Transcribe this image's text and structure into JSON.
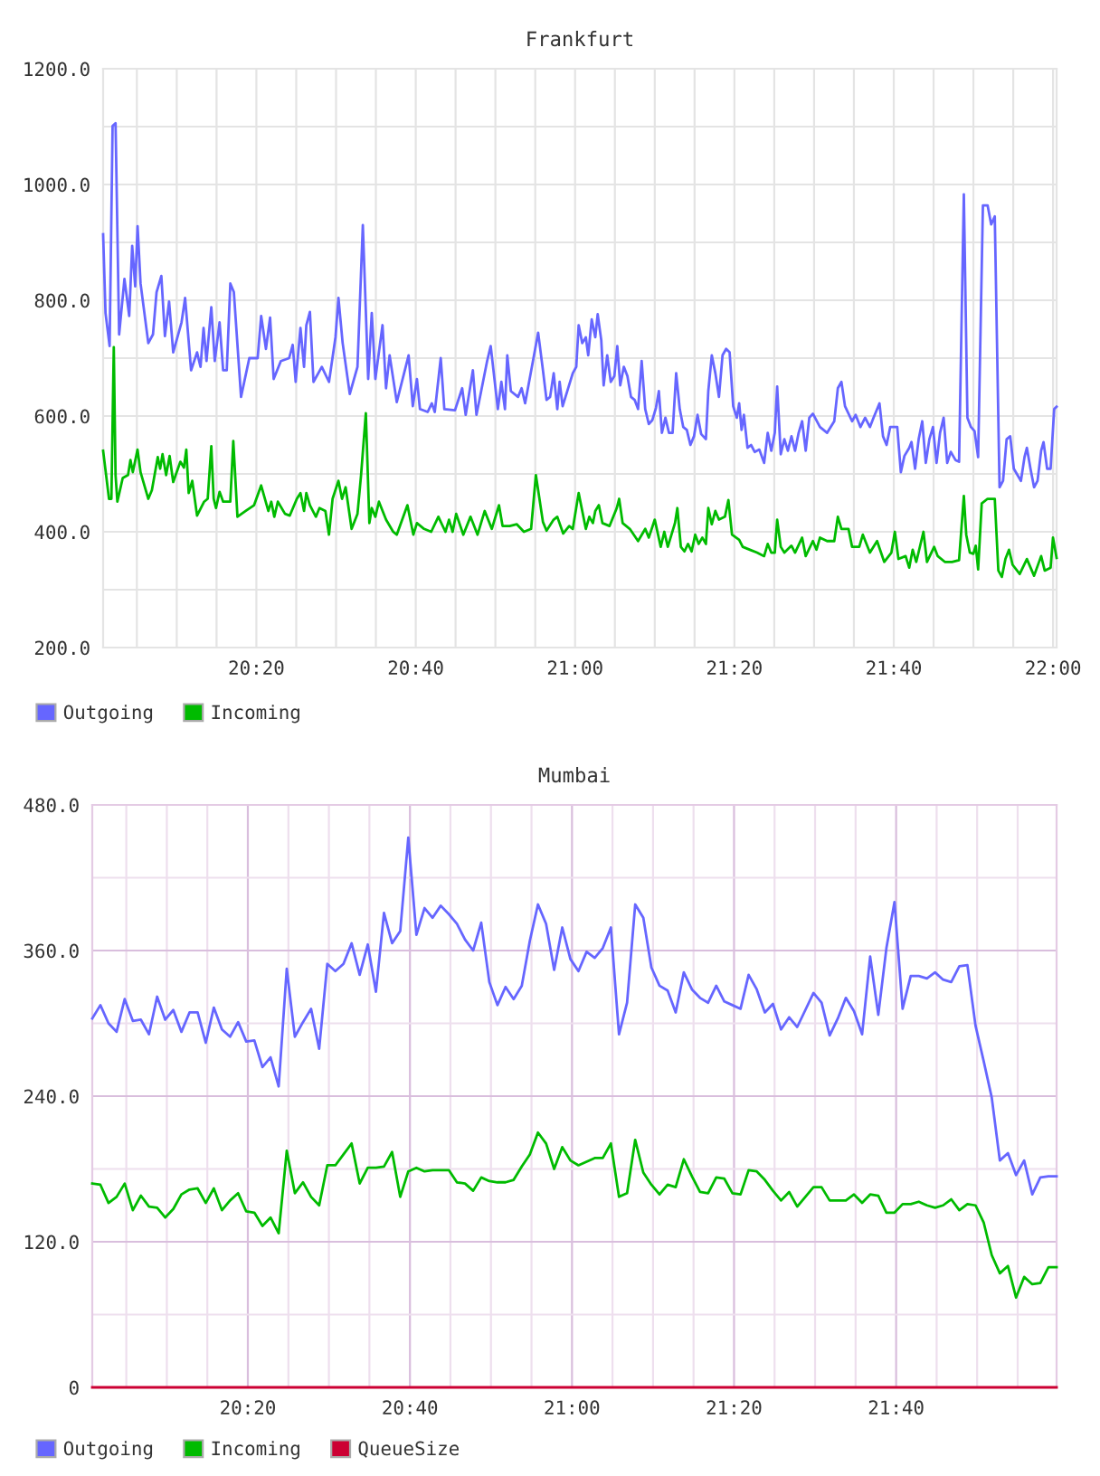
{
  "chart_data": [
    {
      "type": "line",
      "title": "Frankfurt",
      "xlim": [
        20.0127,
        22.0073
      ],
      "xticks": [
        {
          "value": 20.0833,
          "label": null
        },
        {
          "value": 20.1667,
          "label": null
        },
        {
          "value": 20.25,
          "label": null
        },
        {
          "value": 20.3333,
          "label": "20:20"
        },
        {
          "value": 20.4167,
          "label": null
        },
        {
          "value": 20.5,
          "label": null
        },
        {
          "value": 20.5833,
          "label": null
        },
        {
          "value": 20.6667,
          "label": "20:40"
        },
        {
          "value": 20.75,
          "label": null
        },
        {
          "value": 20.8333,
          "label": null
        },
        {
          "value": 20.9167,
          "label": null
        },
        {
          "value": 21,
          "label": "21:00"
        },
        {
          "value": 21.0833,
          "label": null
        },
        {
          "value": 21.1667,
          "label": null
        },
        {
          "value": 21.25,
          "label": null
        },
        {
          "value": 21.3333,
          "label": "21:20"
        },
        {
          "value": 21.4167,
          "label": null
        },
        {
          "value": 21.5,
          "label": null
        },
        {
          "value": 21.5833,
          "label": null
        },
        {
          "value": 21.6667,
          "label": "21:40"
        },
        {
          "value": 21.75,
          "label": null
        },
        {
          "value": 21.8333,
          "label": null
        },
        {
          "value": 21.9167,
          "label": null
        },
        {
          "value": 22,
          "label": "22:00"
        }
      ],
      "ylim": [
        200,
        1200
      ],
      "yticks": [
        {
          "value": 200,
          "label": "200.0"
        },
        {
          "value": 300,
          "label": null
        },
        {
          "value": 400,
          "label": "400.0"
        },
        {
          "value": 500,
          "label": null
        },
        {
          "value": 600,
          "label": "600.0"
        },
        {
          "value": 700,
          "label": null
        },
        {
          "value": 800,
          "label": "800.0"
        },
        {
          "value": 900,
          "label": null
        },
        {
          "value": 1000,
          "label": "1000.0"
        },
        {
          "value": 1100,
          "label": null
        },
        {
          "value": 1200,
          "label": "1200.0"
        }
      ],
      "grid": true,
      "legend": "bottom left",
      "series": [
        {
          "name": "Outgoing",
          "color": "#6666ff",
          "x": [
            20.0127,
            20.0177,
            20.0263,
            20.0325,
            20.0387,
            20.0462,
            20.0573,
            20.0673,
            20.0735,
            20.0798,
            20.0848,
            20.091,
            20.1072,
            20.117,
            20.1245,
            20.1345,
            20.142,
            20.1507,
            20.1593,
            20.1768,
            20.1842,
            20.1967,
            20.2092,
            20.2165,
            20.2228,
            20.229,
            20.239,
            20.2463,
            20.2563,
            20.2638,
            20.2713,
            20.2788,
            20.2862,
            20.3012,
            20.3185,
            20.336,
            20.3433,
            20.3533,
            20.362,
            20.3695,
            20.3845,
            20.4018,
            20.4093,
            20.4155,
            20.4255,
            20.433,
            20.4378,
            20.4453,
            20.4528,
            20.4702,
            20.4852,
            20.4988,
            20.505,
            20.5138,
            20.5287,
            20.5448,
            20.556,
            20.5672,
            20.5747,
            20.5822,
            20.5972,
            20.6045,
            20.612,
            20.627,
            20.6518,
            20.6605,
            20.6692,
            20.6755,
            20.6917,
            20.7003,
            20.7065,
            20.719,
            20.7265,
            20.7488,
            20.7638,
            20.7712,
            20.7862,
            20.7937,
            20.816,
            20.8235,
            20.8385,
            20.8458,
            20.8533,
            20.8582,
            20.8657,
            20.8807,
            20.8882,
            20.8955,
            20.913,
            20.9228,
            20.9328,
            20.9403,
            20.9478,
            20.9553,
            20.9628,
            20.9677,
            20.974,
            20.9952,
            21.0025,
            21.0075,
            21.015,
            21.0225,
            21.0275,
            21.0348,
            21.0423,
            21.0473,
            21.0548,
            21.0598,
            21.0672,
            21.0747,
            21.0822,
            21.0883,
            21.0945,
            21.102,
            21.1095,
            21.117,
            21.1245,
            21.1318,
            21.1393,
            21.1468,
            21.1543,
            21.1617,
            21.1692,
            21.1753,
            21.1817,
            21.189,
            21.1965,
            21.204,
            21.2115,
            21.219,
            21.2263,
            21.2338,
            21.2413,
            21.2488,
            21.2562,
            21.2637,
            21.2737,
            21.2787,
            21.286,
            21.2935,
            21.301,
            21.3085,
            21.316,
            21.3233,
            21.3308,
            21.3383,
            21.3433,
            21.3483,
            21.3532,
            21.3607,
            21.3682,
            21.3757,
            21.3855,
            21.3955,
            21.403,
            21.4105,
            21.4178,
            21.4228,
            21.4303,
            21.4378,
            21.4452,
            21.4527,
            21.4602,
            21.4677,
            21.475,
            21.4825,
            21.49,
            21.4975,
            21.5123,
            21.5273,
            21.5422,
            21.5497,
            21.5572,
            21.5647,
            21.5795,
            21.587,
            21.597,
            21.6068,
            21.6168,
            21.6243,
            21.6368,
            21.6442,
            21.6517,
            21.6592,
            21.674,
            21.6815,
            21.689,
            21.699,
            21.7038,
            21.7113,
            21.7188,
            21.7263,
            21.7337,
            21.7412,
            21.7487,
            21.7562,
            21.7635,
            21.771,
            21.7785,
            21.786,
            21.7958,
            21.8033,
            21.8133,
            21.8208,
            21.8282,
            21.8357,
            21.8432,
            21.8532,
            21.863,
            21.8705,
            21.878,
            21.888,
            21.8953,
            21.9028,
            21.9103,
            21.9178,
            21.9327,
            21.9402,
            21.9452,
            21.9527,
            21.9602,
            21.9675,
            21.975,
            21.98,
            21.9875,
            21.9948,
            22.0023,
            22.0073
          ],
          "values": [
            914,
            778,
            721,
            1101,
            1106,
            741,
            837,
            773,
            894,
            824,
            928,
            829,
            726,
            741,
            814,
            842,
            738,
            798,
            710,
            762,
            804,
            679,
            710,
            685,
            752,
            695,
            788,
            695,
            762,
            679,
            679,
            829,
            814,
            633,
            700,
            700,
            773,
            716,
            770,
            664,
            695,
            700,
            723,
            659,
            752,
            685,
            757,
            780,
            659,
            685,
            659,
            736,
            804,
            726,
            638,
            685,
            930,
            664,
            778,
            664,
            757,
            648,
            705,
            624,
            705,
            617,
            664,
            612,
            607,
            622,
            607,
            700,
            612,
            610,
            648,
            602,
            679,
            602,
            695,
            721,
            612,
            659,
            612,
            705,
            643,
            633,
            648,
            622,
            700,
            744,
            679,
            628,
            633,
            674,
            612,
            659,
            617,
            674,
            685,
            757,
            726,
            736,
            705,
            767,
            736,
            776,
            731,
            653,
            705,
            659,
            669,
            721,
            653,
            685,
            669,
            633,
            628,
            612,
            695,
            612,
            586,
            593,
            614,
            643,
            571,
            597,
            571,
            571,
            674,
            612,
            581,
            576,
            550,
            565,
            602,
            569,
            560,
            643,
            705,
            674,
            633,
            705,
            716,
            710,
            617,
            597,
            622,
            576,
            602,
            545,
            550,
            538,
            542,
            519,
            571,
            540,
            571,
            651,
            534,
            560,
            540,
            565,
            540,
            571,
            591,
            540,
            597,
            604,
            581,
            571,
            591,
            648,
            659,
            617,
            591,
            602,
            581,
            597,
            581,
            597,
            622,
            565,
            550,
            581,
            581,
            503,
            531,
            545,
            555,
            509,
            560,
            591,
            519,
            560,
            581,
            519,
            571,
            597,
            519,
            538,
            524,
            521,
            983,
            597,
            581,
            574,
            529,
            964,
            964,
            931,
            945,
            477,
            488,
            560,
            565,
            509,
            488,
            529,
            545,
            509,
            477,
            488,
            540,
            555,
            509,
            509,
            612,
            616
          ]
        },
        {
          "name": "Incoming",
          "color": "#00bb00",
          "x": [
            20.0127,
            20.025,
            20.03,
            20.035,
            20.0387,
            20.0425,
            20.0537,
            20.0648,
            20.0698,
            20.0748,
            20.0847,
            20.091,
            20.1072,
            20.1147,
            20.127,
            20.132,
            20.137,
            20.1445,
            20.1518,
            20.1593,
            20.1743,
            20.1817,
            20.1867,
            20.1917,
            20.1992,
            20.2092,
            20.224,
            20.2315,
            20.239,
            20.244,
            20.2488,
            20.2563,
            20.2638,
            20.2787,
            20.285,
            20.2937,
            20.311,
            20.3285,
            20.3433,
            20.3583,
            20.3645,
            20.3708,
            20.3782,
            20.3932,
            20.4032,
            20.418,
            20.4255,
            20.433,
            20.4378,
            20.4453,
            20.4578,
            20.4653,
            20.4777,
            20.4852,
            20.4927,
            20.505,
            20.5125,
            20.52,
            20.5325,
            20.5448,
            20.5523,
            20.5623,
            20.5697,
            20.5747,
            20.5822,
            20.5897,
            20.6045,
            20.6195,
            20.627,
            20.6493,
            20.6617,
            20.6692,
            20.6842,
            20.699,
            20.714,
            20.7288,
            20.7363,
            20.7438,
            20.7513,
            20.7662,
            20.7812,
            20.796,
            20.811,
            20.8258,
            20.8408,
            20.8483,
            20.8632,
            20.8782,
            20.893,
            20.908,
            20.918,
            20.9328,
            20.9403,
            20.9552,
            20.9628,
            20.9752,
            20.9877,
            20.9952,
            21.0075,
            21.0225,
            21.0298,
            21.0373,
            21.0423,
            21.0498,
            21.0573,
            21.0722,
            21.0872,
            21.0922,
            21.0995,
            21.1145,
            21.1318,
            21.1468,
            21.1543,
            21.1667,
            21.1792,
            21.1867,
            21.194,
            21.209,
            21.214,
            21.2213,
            21.2288,
            21.2363,
            21.2438,
            21.2513,
            21.2587,
            21.2662,
            21.2737,
            21.2787,
            21.286,
            21.2935,
            21.301,
            21.3135,
            21.3208,
            21.3283,
            21.3433,
            21.3507,
            21.3657,
            21.3807,
            21.3955,
            21.403,
            21.4105,
            21.4178,
            21.4228,
            21.4303,
            21.4378,
            21.4527,
            21.4602,
            21.475,
            21.4825,
            21.4975,
            21.505,
            21.5123,
            21.5273,
            21.5422,
            21.5497,
            21.5572,
            21.572,
            21.5795,
            21.5945,
            21.602,
            21.6168,
            21.6318,
            21.6467,
            21.6617,
            21.669,
            21.6765,
            21.6915,
            21.699,
            21.7063,
            21.7138,
            21.7288,
            21.7362,
            21.7512,
            21.7587,
            21.7735,
            21.7885,
            21.8033,
            21.8133,
            21.8183,
            21.8258,
            21.8332,
            21.8382,
            21.8432,
            21.8507,
            21.863,
            21.878,
            21.8855,
            21.8928,
            21.9003,
            21.9078,
            21.9153,
            21.9302,
            21.9452,
            21.9602,
            21.975,
            21.9825,
            21.9948,
            21.9998,
            22.0073
          ],
          "values": [
            540,
            457,
            457,
            719,
            498,
            452,
            493,
            498,
            524,
            503,
            542,
            503,
            457,
            472,
            529,
            509,
            534,
            498,
            531,
            486,
            521,
            511,
            542,
            467,
            488,
            428,
            452,
            457,
            548,
            457,
            441,
            469,
            452,
            452,
            557,
            426,
            436,
            446,
            480,
            436,
            452,
            426,
            452,
            431,
            428,
            457,
            467,
            436,
            467,
            446,
            426,
            441,
            436,
            395,
            457,
            488,
            457,
            477,
            405,
            431,
            498,
            605,
            415,
            441,
            426,
            452,
            421,
            400,
            395,
            446,
            395,
            415,
            405,
            400,
            426,
            400,
            421,
            400,
            431,
            395,
            426,
            395,
            436,
            405,
            446,
            410,
            410,
            413,
            400,
            405,
            498,
            417,
            402,
            421,
            426,
            397,
            410,
            405,
            467,
            405,
            426,
            415,
            436,
            446,
            415,
            410,
            441,
            457,
            415,
            405,
            384,
            405,
            390,
            421,
            374,
            400,
            374,
            415,
            441,
            374,
            366,
            379,
            366,
            395,
            379,
            390,
            379,
            441,
            413,
            436,
            421,
            426,
            455,
            395,
            386,
            374,
            369,
            364,
            358,
            379,
            364,
            364,
            421,
            374,
            364,
            376,
            364,
            390,
            358,
            384,
            369,
            390,
            384,
            384,
            426,
            405,
            405,
            374,
            374,
            395,
            364,
            384,
            348,
            364,
            400,
            353,
            358,
            338,
            369,
            348,
            400,
            348,
            374,
            358,
            348,
            348,
            351,
            462,
            395,
            364,
            362,
            376,
            335,
            449,
            457,
            457,
            333,
            322,
            353,
            369,
            343,
            327,
            353,
            324,
            358,
            333,
            338,
            390,
            355
          ]
        }
      ]
    },
    {
      "type": "line",
      "title": "Mumbai",
      "xlim": [
        20.0133,
        21.9967
      ],
      "xticks": [
        {
          "value": 20.0833,
          "label": null
        },
        {
          "value": 20.1667,
          "label": null
        },
        {
          "value": 20.25,
          "label": null
        },
        {
          "value": 20.3333,
          "label": "20:20"
        },
        {
          "value": 20.4167,
          "label": null
        },
        {
          "value": 20.5,
          "label": null
        },
        {
          "value": 20.5833,
          "label": null
        },
        {
          "value": 20.6667,
          "label": "20:40"
        },
        {
          "value": 20.75,
          "label": null
        },
        {
          "value": 20.8333,
          "label": null
        },
        {
          "value": 20.9167,
          "label": null
        },
        {
          "value": 21,
          "label": "21:00"
        },
        {
          "value": 21.0833,
          "label": null
        },
        {
          "value": 21.1667,
          "label": null
        },
        {
          "value": 21.25,
          "label": null
        },
        {
          "value": 21.3333,
          "label": "21:20"
        },
        {
          "value": 21.4167,
          "label": null
        },
        {
          "value": 21.5,
          "label": null
        },
        {
          "value": 21.5833,
          "label": null
        },
        {
          "value": 21.6667,
          "label": "21:40"
        },
        {
          "value": 21.75,
          "label": null
        },
        {
          "value": 21.8333,
          "label": null
        },
        {
          "value": 21.9167,
          "label": null
        }
      ],
      "ylim": [
        0,
        480
      ],
      "yticks": [
        0,
        {
          "value": 60,
          "label": null
        },
        {
          "value": 120,
          "label": "120.0"
        },
        {
          "value": 180,
          "label": null
        },
        {
          "value": 240,
          "label": "240.0"
        },
        {
          "value": 300,
          "label": null
        },
        {
          "value": 360,
          "label": "360.0"
        },
        {
          "value": 420,
          "label": null
        },
        {
          "value": 480,
          "label": "480.0"
        }
      ],
      "grid": true,
      "legend": "bottom left",
      "x": [
        20.0133,
        20.03,
        20.0467,
        20.0633,
        20.08,
        20.0967,
        20.1133,
        20.13,
        20.1467,
        20.1633,
        20.18,
        20.1967,
        20.2133,
        20.23,
        20.2467,
        20.2633,
        20.28,
        20.2967,
        20.3133,
        20.33,
        20.3467,
        20.3633,
        20.38,
        20.3967,
        20.4133,
        20.43,
        20.4467,
        20.4633,
        20.48,
        20.4967,
        20.5133,
        20.53,
        20.5467,
        20.5633,
        20.58,
        20.5967,
        20.6133,
        20.63,
        20.6467,
        20.6633,
        20.68,
        20.6967,
        20.7133,
        20.73,
        20.7467,
        20.7633,
        20.78,
        20.7967,
        20.8133,
        20.83,
        20.8467,
        20.8633,
        20.88,
        20.8967,
        20.9133,
        20.93,
        20.9467,
        20.9633,
        20.98,
        20.9967,
        21.0133,
        21.03,
        21.0467,
        21.0633,
        21.08,
        21.0967,
        21.1133,
        21.13,
        21.1467,
        21.1633,
        21.18,
        21.1967,
        21.2133,
        21.23,
        21.2467,
        21.2633,
        21.28,
        21.2967,
        21.3133,
        21.33,
        21.3467,
        21.3633,
        21.38,
        21.3967,
        21.4133,
        21.43,
        21.4467,
        21.4633,
        21.48,
        21.4967,
        21.5133,
        21.53,
        21.5467,
        21.5633,
        21.58,
        21.5967,
        21.6133,
        21.63,
        21.6467,
        21.6633,
        21.68,
        21.6967,
        21.7133,
        21.73,
        21.7467,
        21.7633,
        21.78,
        21.7967,
        21.8133,
        21.83,
        21.8467,
        21.8633,
        21.88,
        21.8967,
        21.9133,
        21.93,
        21.9467,
        21.9633,
        21.98,
        21.9967
      ],
      "series": [
        {
          "name": "Outgoing",
          "color": "#6666ff",
          "values": [
            304,
            315,
            300,
            293,
            320,
            302,
            303,
            291,
            322,
            303,
            311,
            293,
            309,
            309,
            284,
            313,
            295,
            289,
            301,
            285,
            286,
            264,
            272,
            248,
            345,
            289,
            301,
            312,
            279,
            349,
            343,
            349,
            366,
            340,
            365,
            326,
            391,
            366,
            376,
            453,
            373,
            395,
            387,
            397,
            390,
            382,
            369,
            360,
            383,
            334,
            315,
            330,
            320,
            331,
            368,
            398,
            382,
            344,
            379,
            353,
            343,
            359,
            354,
            362,
            379,
            291,
            317,
            398,
            387,
            346,
            331,
            327,
            309,
            342,
            328,
            321,
            317,
            331,
            318,
            315,
            312,
            340,
            328,
            309,
            316,
            295,
            305,
            297,
            311,
            325,
            317,
            290,
            304,
            321,
            310,
            291,
            355,
            307,
            362,
            400,
            312,
            339,
            339,
            337,
            342,
            336,
            334,
            347,
            348,
            298,
            269,
            239,
            187,
            193,
            175,
            187,
            159,
            173,
            174,
            174
          ]
        },
        {
          "name": "Incoming",
          "color": "#00bb00",
          "values": [
            168,
            167,
            152,
            157,
            168,
            146,
            158,
            149,
            148,
            140,
            147,
            159,
            163,
            164,
            152,
            164,
            146,
            154,
            160,
            145,
            144,
            133,
            140,
            127,
            195,
            160,
            169,
            157,
            150,
            183,
            183,
            192,
            201,
            168,
            181,
            181,
            182,
            194,
            157,
            178,
            181,
            178,
            179,
            179,
            179,
            169,
            168,
            162,
            173,
            170,
            169,
            169,
            171,
            182,
            192,
            210,
            201,
            180,
            198,
            187,
            183,
            186,
            189,
            189,
            201,
            157,
            160,
            204,
            177,
            167,
            159,
            167,
            165,
            188,
            174,
            161,
            160,
            173,
            172,
            160,
            159,
            179,
            178,
            171,
            162,
            154,
            161,
            149,
            157,
            165,
            165,
            154,
            154,
            154,
            159,
            152,
            159,
            158,
            144,
            144,
            151,
            151,
            153,
            150,
            148,
            150,
            155,
            146,
            151,
            150,
            136,
            109,
            94,
            100,
            74,
            91,
            85,
            86,
            99,
            99
          ]
        },
        {
          "name": "QueueSize",
          "color": "#cc0033",
          "values": [
            0,
            0,
            0,
            0,
            0,
            0,
            0,
            0,
            0,
            0,
            0,
            0,
            0,
            0,
            0,
            0,
            0,
            0,
            0,
            0,
            0,
            0,
            0,
            0,
            0,
            0,
            0,
            0,
            0,
            0,
            0,
            0,
            0,
            0,
            0,
            0,
            0,
            0,
            0,
            0,
            0,
            0,
            0,
            0,
            0,
            0,
            0,
            0,
            0,
            0,
            0,
            0,
            0,
            0,
            0,
            0,
            0,
            0,
            0,
            0,
            0,
            0,
            0,
            0,
            0,
            0,
            0,
            0,
            0,
            0,
            0,
            0,
            0,
            0,
            0,
            0,
            0,
            0,
            0,
            0,
            0,
            0,
            0,
            0,
            0,
            0,
            0,
            0,
            0,
            0,
            0,
            0,
            0,
            0,
            0,
            0,
            0,
            0,
            0,
            0,
            0,
            0,
            0,
            0,
            0,
            0,
            0,
            0,
            0,
            0,
            0,
            0,
            0,
            0,
            0,
            0,
            0,
            0,
            0,
            0
          ]
        }
      ]
    }
  ]
}
